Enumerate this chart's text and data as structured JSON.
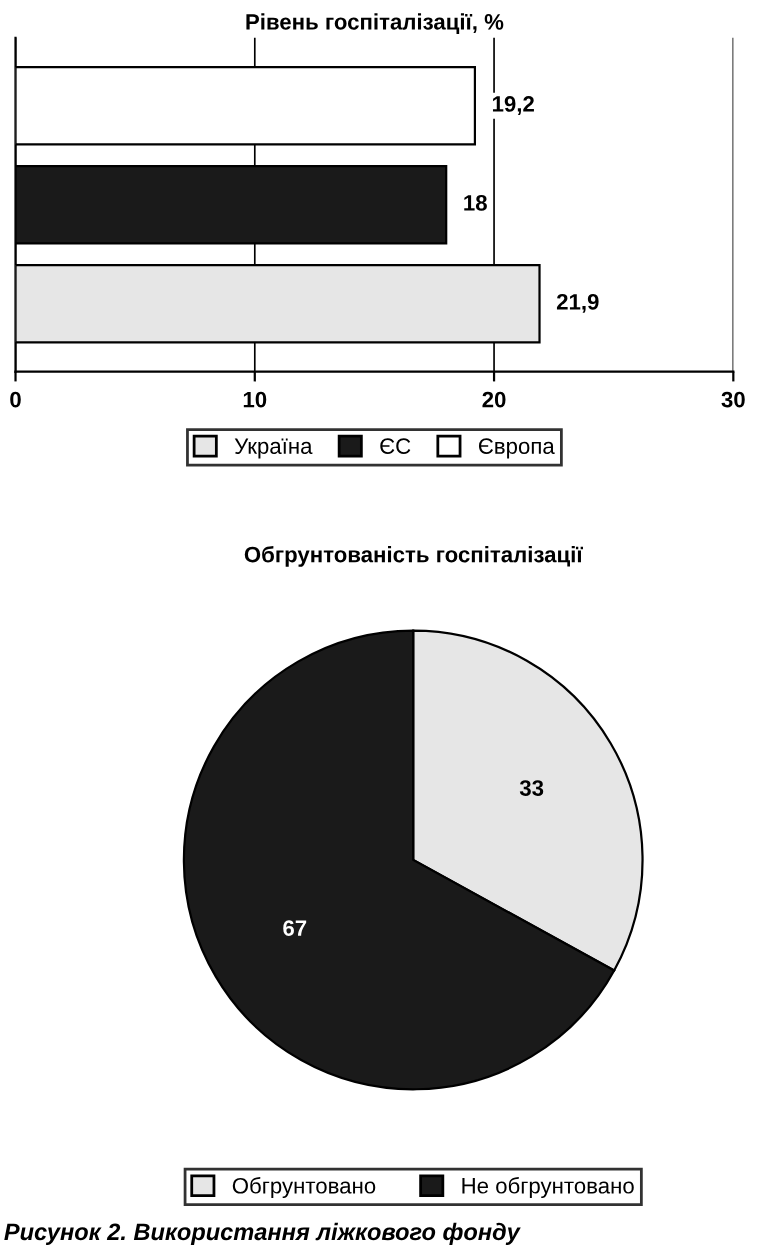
{
  "chart_data": [
    {
      "type": "bar",
      "orientation": "horizontal",
      "title": "Рівень госпіталізації, %",
      "categories": [
        null
      ],
      "series": [
        {
          "name": "Україна",
          "color": "#e6e6e6",
          "values": [
            21.9
          ],
          "value_labels": [
            "21,9"
          ]
        },
        {
          "name": "ЄС",
          "color": "#1a1a1a",
          "values": [
            18
          ],
          "value_labels": [
            "18"
          ]
        },
        {
          "name": "Європа",
          "color": "#ffffff",
          "values": [
            19.2
          ],
          "value_labels": [
            "19,2"
          ]
        }
      ],
      "xlim": [
        0,
        30
      ],
      "xticks": [
        0,
        10,
        20,
        30
      ],
      "grid": "x",
      "legend": "bottom"
    },
    {
      "type": "pie",
      "title": "Обгрунтованість госпіталізації",
      "categories": [
        "Обгрунтовано",
        "Не обгрунтовано"
      ],
      "values": [
        33,
        67
      ],
      "colors": [
        "#e6e6e6",
        "#1a1a1a"
      ],
      "data_labels": true,
      "legend": "bottom",
      "annotations": [
        "Рисунок 2. Використання ліжкового фонду"
      ]
    }
  ]
}
